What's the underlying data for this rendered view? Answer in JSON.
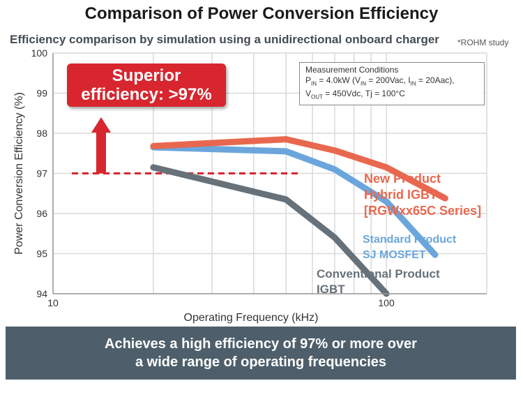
{
  "title": "Comparison of Power Conversion Efficiency",
  "subtitle": "Efficiency comparison by simulation using a unidirectional onboard charger",
  "note": "*ROHM study",
  "callout": {
    "line1": "Superior",
    "line2": "efficiency: >97%"
  },
  "conditions": {
    "heading": "Measurement Conditions",
    "p_label": "P",
    "p_sub": "IN",
    "p_value": " = 4.0kW (V",
    "v_sub": "IN",
    "v_value": " = 200Vac, I",
    "i_sub": "IN",
    "i_value": " = 20Aac),",
    "vout_label": "V",
    "vout_sub": "OUT",
    "vout_value": " = 450Vdc, Tj = 100°C"
  },
  "banner": {
    "line1": "Achieves a high efficiency of 97% or more over",
    "line2": "a wide range of operating frequencies"
  },
  "colors": {
    "new": "#e8684f",
    "standard": "#6aa6dc",
    "conventional": "#66717a",
    "threshold": "#d7262e",
    "grid": "#d9d9d9"
  },
  "chart_data": {
    "type": "line",
    "title": "Comparison of Power Conversion Efficiency",
    "xlabel": "Operating Frequency (kHz)",
    "ylabel": "Power Conversion Efficiency (%)",
    "xscale": "log",
    "xlim": [
      10,
      200
    ],
    "ylim": [
      94,
      100
    ],
    "xticks": [
      10,
      100
    ],
    "xtick_labels": [
      "10",
      "100"
    ],
    "yticks": [
      94,
      95,
      96,
      97,
      98,
      99,
      100
    ],
    "ytick_labels": [
      "94",
      "95",
      "96",
      "97",
      "98",
      "99",
      "100"
    ],
    "grid": true,
    "threshold": 97,
    "series": [
      {
        "name": "New Product Hybrid IGBT [RGWxx65C Series]",
        "label_lines": [
          "New Product",
          "Hybrid IGBT",
          "[RGWxx65C Series]"
        ],
        "x": [
          20,
          50,
          70,
          100,
          150
        ],
        "y": [
          97.68,
          97.85,
          97.57,
          97.15,
          96.38
        ]
      },
      {
        "name": "Standard Product SJ MOSFET",
        "label_lines": [
          "Standard Product",
          "SJ MOSFET"
        ],
        "x": [
          20,
          50,
          70,
          100,
          140
        ],
        "y": [
          97.65,
          97.55,
          97.1,
          96.3,
          94.97
        ]
      },
      {
        "name": "Conventional Product IGBT",
        "label_lines": [
          "Conventional Product",
          "IGBT"
        ],
        "x": [
          20,
          50,
          70,
          100
        ],
        "y": [
          97.15,
          96.35,
          95.4,
          94.0
        ]
      }
    ]
  }
}
